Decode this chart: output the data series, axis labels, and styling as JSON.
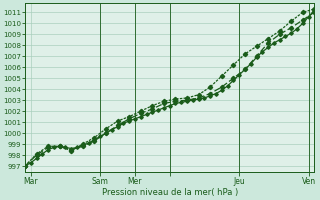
{
  "xlabel": "Pression niveau de la mer( hPa )",
  "ylim": [
    996.5,
    1011.8
  ],
  "xlim": [
    0,
    100
  ],
  "yticks": [
    997,
    998,
    999,
    1000,
    1001,
    1002,
    1003,
    1004,
    1005,
    1006,
    1007,
    1008,
    1009,
    1010,
    1011
  ],
  "xtick_positions": [
    2,
    26,
    38,
    50,
    74,
    98
  ],
  "xtick_labels": [
    "Mar",
    "Sam",
    "Mer",
    "",
    "Jeu",
    "Ven"
  ],
  "bg_color": "#cce8dc",
  "plot_bg": "#dff0e8",
  "line_color": "#1a5c1a",
  "grid_color": "#aacfbe",
  "line1_x": [
    0,
    2,
    4,
    6,
    8,
    10,
    12,
    14,
    16,
    18,
    20,
    22,
    24,
    26,
    28,
    30,
    32,
    34,
    36,
    38,
    40,
    42,
    44,
    46,
    48,
    50,
    52,
    54,
    56,
    58,
    60,
    62,
    64,
    66,
    68,
    70,
    72,
    74,
    76,
    78,
    80,
    82,
    84,
    86,
    88,
    90,
    92,
    94,
    96,
    98,
    100
  ],
  "line1_y": [
    997.0,
    997.3,
    997.7,
    998.1,
    998.5,
    998.7,
    998.8,
    998.7,
    998.6,
    998.7,
    998.9,
    999.1,
    999.4,
    999.7,
    1000.0,
    1000.3,
    1000.6,
    1000.9,
    1001.1,
    1001.3,
    1001.5,
    1001.7,
    1001.9,
    1002.1,
    1002.3,
    1002.5,
    1002.7,
    1002.8,
    1002.9,
    1003.0,
    1003.1,
    1003.2,
    1003.4,
    1003.6,
    1003.9,
    1004.3,
    1004.8,
    1005.3,
    1005.8,
    1006.3,
    1006.9,
    1007.4,
    1007.8,
    1008.2,
    1008.5,
    1008.8,
    1009.1,
    1009.5,
    1010.0,
    1010.6,
    1011.2
  ],
  "line2_x": [
    0,
    4,
    8,
    12,
    16,
    20,
    24,
    28,
    32,
    36,
    40,
    44,
    48,
    52,
    56,
    60,
    64,
    68,
    72,
    76,
    80,
    84,
    88,
    92,
    96,
    100
  ],
  "line2_y": [
    997.0,
    998.0,
    998.7,
    998.8,
    998.5,
    998.8,
    999.3,
    1000.0,
    1000.7,
    1001.3,
    1001.8,
    1002.2,
    1002.7,
    1002.9,
    1003.0,
    1003.2,
    1003.6,
    1004.2,
    1005.0,
    1005.8,
    1007.0,
    1008.2,
    1009.0,
    1009.6,
    1010.3,
    1011.0
  ],
  "line3_x": [
    0,
    4,
    8,
    12,
    16,
    20,
    24,
    28,
    32,
    36,
    40,
    44,
    48,
    52,
    56,
    60,
    64,
    68,
    72,
    76,
    80,
    84,
    88,
    92,
    96,
    100
  ],
  "line3_y": [
    997.0,
    998.1,
    998.8,
    998.8,
    998.4,
    999.0,
    999.6,
    1000.4,
    1001.1,
    1001.5,
    1002.0,
    1002.5,
    1002.9,
    1003.1,
    1003.2,
    1003.5,
    1004.2,
    1005.2,
    1006.2,
    1007.2,
    1007.9,
    1008.6,
    1009.3,
    1010.2,
    1011.0,
    1011.3
  ]
}
